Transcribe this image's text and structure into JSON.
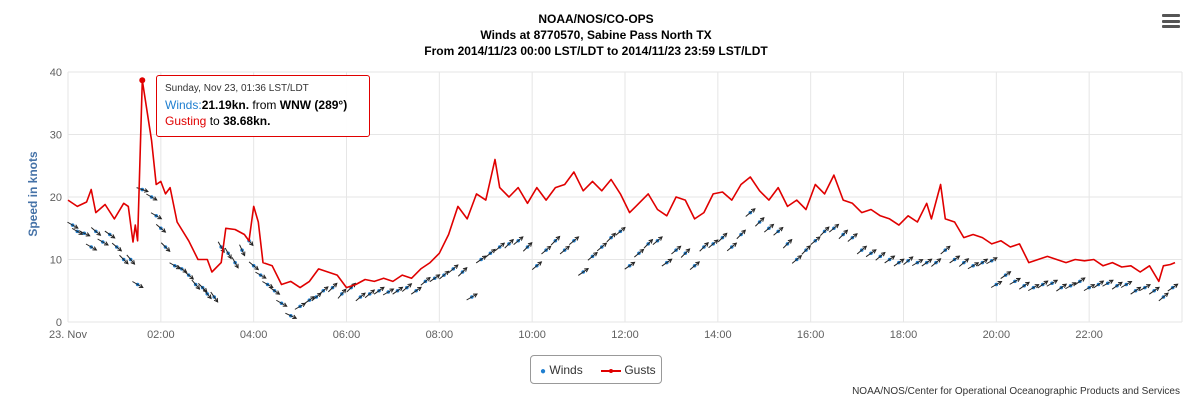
{
  "header": {
    "title_line1": "NOAA/NOS/CO-OPS",
    "title_line2": "Winds at 8770570, Sabine Pass North TX",
    "title_line3": "From 2014/11/23 00:00 LST/LDT to 2014/11/23 23:59 LST/LDT"
  },
  "menu": {
    "icon": "hamburger-menu-icon"
  },
  "tooltip": {
    "date": "Sunday, Nov 23, 01:36 LST/LDT",
    "winds_label": "Winds:",
    "winds_value": "21.19kn.",
    "from_text": "from",
    "direction": "WNW (289°)",
    "gust_label": "Gusting",
    "gust_to": "to",
    "gust_value": "38.68kn."
  },
  "legend": {
    "winds_label": "Winds",
    "gusts_label": "Gusts"
  },
  "credits": "NOAA/NOS/Center for Operational Oceanographic Products and Services",
  "colors": {
    "winds": "#1f7fd0",
    "gusts": "#e00000",
    "grid": "#e6e6e6",
    "axis_title": "#4572a7"
  },
  "chart_data": {
    "type": "line",
    "ylabel": "Speed in knots",
    "ylim": [
      0,
      40
    ],
    "yticks": [
      "0",
      "10",
      "20",
      "30",
      "40"
    ],
    "xlim_hours": [
      0,
      24
    ],
    "xticks": [
      {
        "h": 0,
        "label": "23. Nov"
      },
      {
        "h": 2,
        "label": "02:00"
      },
      {
        "h": 4,
        "label": "04:00"
      },
      {
        "h": 6,
        "label": "06:00"
      },
      {
        "h": 8,
        "label": "08:00"
      },
      {
        "h": 10,
        "label": "10:00"
      },
      {
        "h": 12,
        "label": "12:00"
      },
      {
        "h": 14,
        "label": "14:00"
      },
      {
        "h": 16,
        "label": "16:00"
      },
      {
        "h": 18,
        "label": "18:00"
      },
      {
        "h": 20,
        "label": "20:00"
      },
      {
        "h": 22,
        "label": "22:00"
      }
    ],
    "grid": true,
    "legend_position": "bottom-center",
    "highlight": {
      "h": 1.6,
      "gust": 38.68
    },
    "series": [
      {
        "name": "Gusts",
        "points": [
          [
            0,
            19.5
          ],
          [
            0.2,
            18.5
          ],
          [
            0.4,
            19.2
          ],
          [
            0.5,
            21.2
          ],
          [
            0.6,
            17.5
          ],
          [
            0.8,
            18.8
          ],
          [
            1.0,
            16.5
          ],
          [
            1.2,
            19.0
          ],
          [
            1.3,
            18.5
          ],
          [
            1.4,
            12.8
          ],
          [
            1.45,
            15.5
          ],
          [
            1.5,
            13.0
          ],
          [
            1.6,
            38.68
          ],
          [
            1.8,
            29.0
          ],
          [
            1.9,
            22.0
          ],
          [
            2.0,
            22.5
          ],
          [
            2.1,
            20.5
          ],
          [
            2.2,
            21.5
          ],
          [
            2.35,
            16.0
          ],
          [
            2.6,
            13.0
          ],
          [
            2.8,
            10.0
          ],
          [
            3.0,
            10.0
          ],
          [
            3.1,
            8.0
          ],
          [
            3.3,
            9.5
          ],
          [
            3.4,
            15.0
          ],
          [
            3.6,
            14.8
          ],
          [
            3.8,
            14.0
          ],
          [
            3.9,
            13.0
          ],
          [
            4.0,
            18.5
          ],
          [
            4.1,
            16.0
          ],
          [
            4.2,
            9.5
          ],
          [
            4.4,
            9.0
          ],
          [
            4.6,
            6.0
          ],
          [
            4.8,
            6.5
          ],
          [
            5.0,
            5.5
          ],
          [
            5.2,
            6.5
          ],
          [
            5.4,
            8.5
          ],
          [
            5.6,
            8.0
          ],
          [
            5.8,
            7.5
          ],
          [
            6.0,
            5.5
          ],
          [
            6.2,
            6.0
          ],
          [
            6.4,
            6.8
          ],
          [
            6.6,
            6.5
          ],
          [
            6.8,
            7.0
          ],
          [
            7.0,
            6.5
          ],
          [
            7.2,
            7.5
          ],
          [
            7.4,
            7.0
          ],
          [
            7.6,
            8.5
          ],
          [
            7.8,
            9.5
          ],
          [
            8.0,
            11.0
          ],
          [
            8.2,
            14.0
          ],
          [
            8.4,
            18.5
          ],
          [
            8.6,
            16.5
          ],
          [
            8.8,
            20.5
          ],
          [
            9.0,
            19.5
          ],
          [
            9.2,
            26.0
          ],
          [
            9.3,
            21.5
          ],
          [
            9.5,
            20.0
          ],
          [
            9.7,
            21.5
          ],
          [
            9.9,
            19.0
          ],
          [
            10.1,
            21.5
          ],
          [
            10.3,
            19.5
          ],
          [
            10.5,
            21.5
          ],
          [
            10.7,
            22.0
          ],
          [
            10.9,
            24.0
          ],
          [
            11.1,
            21.0
          ],
          [
            11.3,
            22.5
          ],
          [
            11.5,
            21.0
          ],
          [
            11.7,
            22.8
          ],
          [
            11.9,
            20.5
          ],
          [
            12.1,
            17.5
          ],
          [
            12.3,
            19.0
          ],
          [
            12.5,
            20.5
          ],
          [
            12.7,
            18.0
          ],
          [
            12.9,
            17.0
          ],
          [
            13.1,
            20.0
          ],
          [
            13.3,
            19.5
          ],
          [
            13.5,
            16.5
          ],
          [
            13.7,
            17.5
          ],
          [
            13.9,
            20.5
          ],
          [
            14.1,
            20.8
          ],
          [
            14.3,
            19.5
          ],
          [
            14.5,
            22.0
          ],
          [
            14.7,
            23.2
          ],
          [
            14.9,
            21.0
          ],
          [
            15.1,
            19.5
          ],
          [
            15.3,
            21.5
          ],
          [
            15.5,
            18.5
          ],
          [
            15.7,
            19.5
          ],
          [
            15.9,
            18.0
          ],
          [
            16.1,
            22.0
          ],
          [
            16.3,
            20.5
          ],
          [
            16.5,
            23.5
          ],
          [
            16.7,
            19.5
          ],
          [
            16.9,
            19.0
          ],
          [
            17.1,
            17.5
          ],
          [
            17.3,
            18.0
          ],
          [
            17.5,
            17.0
          ],
          [
            17.7,
            16.5
          ],
          [
            17.9,
            15.5
          ],
          [
            18.1,
            17.0
          ],
          [
            18.3,
            16.0
          ],
          [
            18.5,
            19.0
          ],
          [
            18.6,
            16.5
          ],
          [
            18.8,
            22.0
          ],
          [
            18.9,
            16.5
          ],
          [
            19.1,
            16.0
          ],
          [
            19.3,
            13.5
          ],
          [
            19.5,
            14.0
          ],
          [
            19.7,
            13.5
          ],
          [
            19.9,
            12.5
          ],
          [
            20.1,
            13.0
          ],
          [
            20.3,
            12.0
          ],
          [
            20.5,
            12.5
          ],
          [
            20.7,
            9.5
          ],
          [
            20.9,
            10.0
          ],
          [
            21.1,
            10.5
          ],
          [
            21.3,
            10.0
          ],
          [
            21.5,
            9.5
          ],
          [
            21.7,
            10.0
          ],
          [
            21.9,
            9.8
          ],
          [
            22.1,
            10.0
          ],
          [
            22.3,
            9.0
          ],
          [
            22.5,
            9.5
          ],
          [
            22.7,
            8.8
          ],
          [
            22.9,
            9.0
          ],
          [
            23.1,
            8.0
          ],
          [
            23.3,
            9.0
          ],
          [
            23.5,
            6.5
          ],
          [
            23.6,
            9.0
          ],
          [
            23.75,
            9.2
          ],
          [
            23.85,
            9.5
          ]
        ]
      },
      {
        "name": "Winds",
        "points": [
          [
            0.1,
            15.5,
            300
          ],
          [
            0.2,
            14.5,
            300
          ],
          [
            0.35,
            14.2,
            295
          ],
          [
            0.5,
            12.0,
            300
          ],
          [
            0.6,
            14.5,
            310
          ],
          [
            0.75,
            12.8,
            300
          ],
          [
            0.9,
            14.0,
            305
          ],
          [
            1.05,
            12.0,
            310
          ],
          [
            1.2,
            10.0,
            315
          ],
          [
            1.35,
            10.0,
            320
          ],
          [
            1.5,
            6.0,
            300
          ],
          [
            1.6,
            21.19,
            289
          ],
          [
            1.8,
            20.0,
            300
          ],
          [
            1.9,
            17.0,
            300
          ],
          [
            2.0,
            15.0,
            310
          ],
          [
            2.1,
            12.0,
            315
          ],
          [
            2.3,
            9.0,
            300
          ],
          [
            2.45,
            8.5,
            305
          ],
          [
            2.6,
            7.5,
            310
          ],
          [
            2.75,
            6.0,
            320
          ],
          [
            2.9,
            5.5,
            315
          ],
          [
            3.0,
            4.5,
            320
          ],
          [
            3.15,
            4.0,
            325
          ],
          [
            3.3,
            12.0,
            330
          ],
          [
            3.45,
            11.0,
            330
          ],
          [
            3.6,
            9.5,
            330
          ],
          [
            3.75,
            11.5,
            335
          ],
          [
            3.9,
            13.0,
            320
          ],
          [
            4.0,
            9.0,
            310
          ],
          [
            4.15,
            7.5,
            300
          ],
          [
            4.3,
            6.0,
            300
          ],
          [
            4.45,
            5.0,
            305
          ],
          [
            4.6,
            3.0,
            300
          ],
          [
            4.8,
            1.0,
            295
          ],
          [
            5.0,
            2.5,
            240
          ],
          [
            5.2,
            3.5,
            235
          ],
          [
            5.35,
            4.0,
            230
          ],
          [
            5.5,
            5.0,
            230
          ],
          [
            5.7,
            5.5,
            225
          ],
          [
            5.9,
            4.5,
            220
          ],
          [
            6.1,
            5.5,
            225
          ],
          [
            6.3,
            4.0,
            230
          ],
          [
            6.5,
            4.5,
            230
          ],
          [
            6.7,
            5.0,
            235
          ],
          [
            6.9,
            4.8,
            240
          ],
          [
            7.1,
            5.0,
            235
          ],
          [
            7.3,
            5.5,
            230
          ],
          [
            7.5,
            5.0,
            235
          ],
          [
            7.7,
            6.5,
            230
          ],
          [
            7.9,
            7.0,
            235
          ],
          [
            8.1,
            7.5,
            230
          ],
          [
            8.3,
            8.5,
            230
          ],
          [
            8.5,
            8.0,
            225
          ],
          [
            8.7,
            4.0,
            240
          ],
          [
            8.9,
            10.0,
            235
          ],
          [
            9.1,
            11.0,
            230
          ],
          [
            9.3,
            12.0,
            230
          ],
          [
            9.5,
            12.5,
            225
          ],
          [
            9.7,
            13.0,
            230
          ],
          [
            9.9,
            12.0,
            225
          ],
          [
            10.1,
            9.0,
            230
          ],
          [
            10.3,
            11.5,
            230
          ],
          [
            10.5,
            13.0,
            225
          ],
          [
            10.7,
            11.5,
            230
          ],
          [
            10.9,
            13.0,
            230
          ],
          [
            11.1,
            8.0,
            235
          ],
          [
            11.3,
            10.5,
            230
          ],
          [
            11.5,
            12.0,
            230
          ],
          [
            11.7,
            13.5,
            225
          ],
          [
            11.9,
            14.5,
            230
          ],
          [
            12.1,
            9.0,
            235
          ],
          [
            12.3,
            11.0,
            230
          ],
          [
            12.5,
            12.5,
            225
          ],
          [
            12.7,
            13.0,
            230
          ],
          [
            12.9,
            9.5,
            235
          ],
          [
            13.1,
            11.5,
            230
          ],
          [
            13.3,
            11.0,
            225
          ],
          [
            13.5,
            9.0,
            230
          ],
          [
            13.7,
            12.0,
            225
          ],
          [
            13.9,
            12.5,
            230
          ],
          [
            14.1,
            13.5,
            225
          ],
          [
            14.3,
            12.0,
            230
          ],
          [
            14.5,
            14.0,
            225
          ],
          [
            14.7,
            17.5,
            230
          ],
          [
            14.9,
            16.0,
            225
          ],
          [
            15.1,
            15.0,
            230
          ],
          [
            15.3,
            14.5,
            230
          ],
          [
            15.5,
            12.5,
            225
          ],
          [
            15.7,
            10.0,
            230
          ],
          [
            15.9,
            11.5,
            225
          ],
          [
            16.1,
            13.0,
            230
          ],
          [
            16.3,
            14.5,
            225
          ],
          [
            16.5,
            15.0,
            230
          ],
          [
            16.7,
            14.0,
            225
          ],
          [
            16.9,
            13.5,
            230
          ],
          [
            17.1,
            11.5,
            230
          ],
          [
            17.3,
            11.0,
            235
          ],
          [
            17.5,
            10.5,
            230
          ],
          [
            17.7,
            10.0,
            235
          ],
          [
            17.9,
            9.5,
            235
          ],
          [
            18.1,
            9.8,
            230
          ],
          [
            18.3,
            9.5,
            240
          ],
          [
            18.5,
            9.5,
            235
          ],
          [
            18.7,
            9.5,
            230
          ],
          [
            18.9,
            11.5,
            230
          ],
          [
            19.1,
            10.0,
            235
          ],
          [
            19.3,
            9.5,
            230
          ],
          [
            19.5,
            9.0,
            240
          ],
          [
            19.7,
            9.5,
            235
          ],
          [
            19.9,
            9.8,
            240
          ],
          [
            20.0,
            6.0,
            240
          ],
          [
            20.2,
            7.5,
            235
          ],
          [
            20.4,
            6.5,
            240
          ],
          [
            20.6,
            5.8,
            235
          ],
          [
            20.8,
            5.5,
            240
          ],
          [
            21.0,
            6.0,
            235
          ],
          [
            21.2,
            6.2,
            240
          ],
          [
            21.4,
            5.5,
            235
          ],
          [
            21.6,
            5.8,
            240
          ],
          [
            21.8,
            6.5,
            235
          ],
          [
            22.0,
            5.5,
            240
          ],
          [
            22.2,
            6.0,
            235
          ],
          [
            22.4,
            6.2,
            240
          ],
          [
            22.6,
            5.8,
            235
          ],
          [
            22.8,
            6.0,
            240
          ],
          [
            23.0,
            5.0,
            235
          ],
          [
            23.2,
            5.5,
            240
          ],
          [
            23.4,
            5.0,
            235
          ],
          [
            23.6,
            4.0,
            230
          ],
          [
            23.8,
            5.5,
            235
          ]
        ]
      }
    ]
  }
}
